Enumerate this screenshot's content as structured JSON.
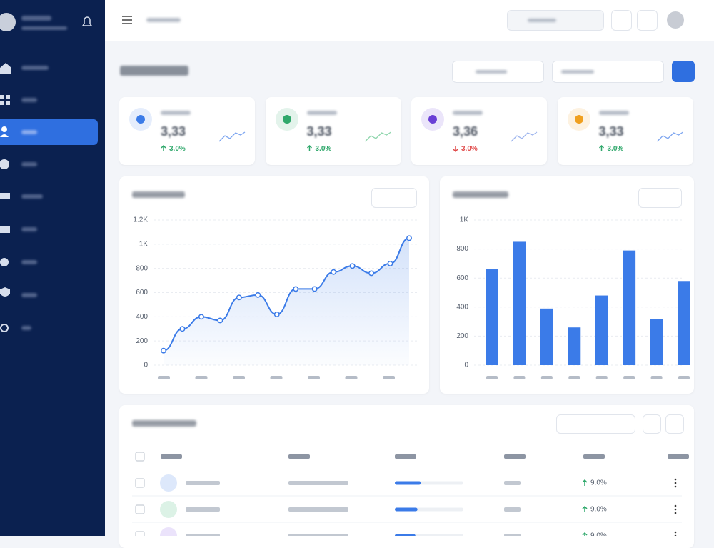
{
  "cards": [
    {
      "value": "3,33",
      "change": "3.0%",
      "direction": "up",
      "color": "#3b7be8"
    },
    {
      "value": "3,33",
      "change": "3.0%",
      "direction": "up",
      "color": "#2fa86b"
    },
    {
      "value": "3,36",
      "change": "3.0%",
      "direction": "down",
      "color": "#6a3fd6"
    },
    {
      "value": "3,33",
      "change": "3.0%",
      "direction": "up",
      "color": "#f0a020"
    }
  ],
  "line_chart": {
    "type": "line",
    "color": "#3b7be8",
    "values": [
      120,
      300,
      400,
      370,
      560,
      580,
      420,
      630,
      630,
      770,
      820,
      760,
      840,
      1050
    ],
    "ylim": [
      0,
      1200
    ],
    "yticks": [
      0,
      200,
      400,
      600,
      800,
      {
        "value": 1000,
        "label": "1K"
      },
      {
        "value": 1200,
        "label": "1.2K"
      }
    ],
    "grid": true
  },
  "bar_chart": {
    "type": "bar",
    "color": "#3b7be8",
    "values": [
      660,
      850,
      390,
      260,
      480,
      790,
      320,
      580
    ],
    "ylim": [
      0,
      1000
    ],
    "yticks": [
      0,
      200,
      400,
      600,
      800,
      {
        "value": 1000,
        "label": "1K"
      }
    ],
    "grid": true
  },
  "table": {
    "rows": [
      {
        "change": "9.0%",
        "progress": 38
      },
      {
        "change": "9.0%",
        "progress": 33
      },
      {
        "change": "9.0%",
        "progress": 30
      }
    ]
  }
}
